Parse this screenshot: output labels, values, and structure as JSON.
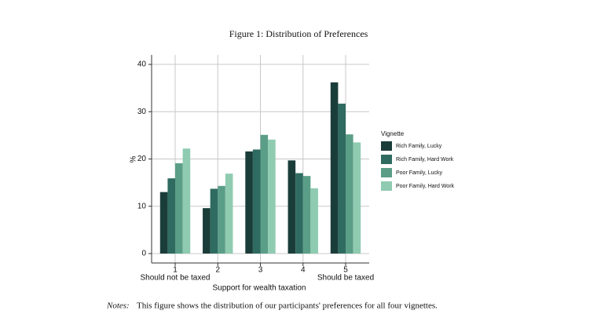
{
  "chart_data": {
    "type": "bar",
    "title": "Figure 1: Distribution of Preferences",
    "categories": [
      "1",
      "2",
      "3",
      "4",
      "5"
    ],
    "category_sublabels": [
      "Should not be taxed",
      null,
      null,
      null,
      "Should be taxed"
    ],
    "x_label": "Support for wealth taxation",
    "y_label": "%",
    "legend_title": "Vignette",
    "series": [
      {
        "name": "Rich Family, Lucky",
        "color": "#1b3d39",
        "values": [
          13,
          9.6,
          21.6,
          19.7,
          36.2
        ]
      },
      {
        "name": "Rich Family, Hard Work",
        "color": "#2f6b60",
        "values": [
          15.9,
          13.7,
          22,
          17,
          31.7
        ]
      },
      {
        "name": "Poor Family, Lucky",
        "color": "#5b9e88",
        "values": [
          19.1,
          14.3,
          25.1,
          16.4,
          25.2
        ]
      },
      {
        "name": "Poor Family, Hard Work",
        "color": "#8fcbb0",
        "values": [
          22.2,
          16.9,
          24.1,
          13.8,
          23.5
        ]
      }
    ],
    "ylim": [
      -2,
      42
    ],
    "yticks": [
      0,
      10,
      20,
      30,
      40
    ],
    "grid": true,
    "notes_label": "Notes:",
    "note": "This figure shows the distribution of our participants' preferences for all four vignettes."
  }
}
